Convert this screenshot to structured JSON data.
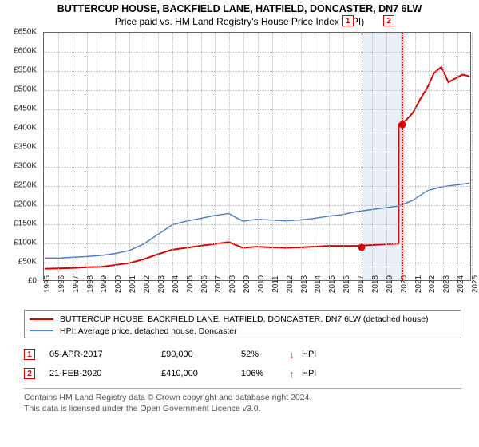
{
  "title": {
    "line1": "BUTTERCUP HOUSE, BACKFIELD LANE, HATFIELD, DONCASTER, DN7 6LW",
    "line2": "Price paid vs. HM Land Registry's House Price Index (HPI)"
  },
  "chart": {
    "type": "line",
    "background_color": "#ffffff",
    "grid_color": "#bbbbbb",
    "axis_color": "#666666",
    "title_fontsize": 12.5,
    "label_fontsize": 10,
    "x": {
      "years": [
        1995,
        1996,
        1997,
        1998,
        1999,
        2000,
        2001,
        2002,
        2003,
        2004,
        2005,
        2006,
        2007,
        2008,
        2009,
        2010,
        2011,
        2012,
        2013,
        2014,
        2015,
        2016,
        2017,
        2018,
        2019,
        2020,
        2021,
        2022,
        2023,
        2024,
        2025
      ],
      "min": 1995,
      "max": 2025
    },
    "y": {
      "ticks": [
        0,
        50,
        100,
        150,
        200,
        250,
        300,
        350,
        400,
        450,
        500,
        550,
        600,
        650
      ],
      "min": 0,
      "max": 650,
      "prefix": "£",
      "suffix": "K"
    },
    "series": [
      {
        "name": "property",
        "label": "BUTTERCUP HOUSE, BACKFIELD LANE, HATFIELD, DONCASTER, DN7 6LW (detached house)",
        "color": "#e10000",
        "line_width": 2,
        "points": [
          [
            1995,
            30
          ],
          [
            1996,
            31
          ],
          [
            1997,
            32
          ],
          [
            1998,
            34
          ],
          [
            1999,
            35
          ],
          [
            2000,
            40
          ],
          [
            2001,
            45
          ],
          [
            2002,
            55
          ],
          [
            2003,
            68
          ],
          [
            2004,
            80
          ],
          [
            2005,
            85
          ],
          [
            2006,
            90
          ],
          [
            2007,
            95
          ],
          [
            2008,
            100
          ],
          [
            2009,
            85
          ],
          [
            2010,
            88
          ],
          [
            2011,
            86
          ],
          [
            2012,
            85
          ],
          [
            2013,
            86
          ],
          [
            2014,
            88
          ],
          [
            2015,
            90
          ],
          [
            2016,
            90
          ],
          [
            2017,
            90
          ],
          [
            2018,
            92
          ],
          [
            2019,
            94
          ],
          [
            2019.99,
            96
          ],
          [
            2020,
            410
          ],
          [
            2020.5,
            420
          ],
          [
            2021,
            440
          ],
          [
            2021.5,
            475
          ],
          [
            2022,
            505
          ],
          [
            2022.5,
            545
          ],
          [
            2023,
            560
          ],
          [
            2023.5,
            520
          ],
          [
            2024,
            530
          ],
          [
            2024.5,
            540
          ],
          [
            2025,
            535
          ]
        ]
      },
      {
        "name": "hpi",
        "label": "HPI: Average price, detached house, Doncaster",
        "color": "#4a7ecb",
        "line_width": 1.5,
        "points": [
          [
            1995,
            58
          ],
          [
            1996,
            58
          ],
          [
            1997,
            60
          ],
          [
            1998,
            62
          ],
          [
            1999,
            65
          ],
          [
            2000,
            70
          ],
          [
            2001,
            78
          ],
          [
            2002,
            95
          ],
          [
            2003,
            120
          ],
          [
            2004,
            145
          ],
          [
            2005,
            155
          ],
          [
            2006,
            162
          ],
          [
            2007,
            170
          ],
          [
            2008,
            175
          ],
          [
            2009,
            155
          ],
          [
            2010,
            160
          ],
          [
            2011,
            158
          ],
          [
            2012,
            156
          ],
          [
            2013,
            158
          ],
          [
            2014,
            162
          ],
          [
            2015,
            168
          ],
          [
            2016,
            172
          ],
          [
            2017,
            180
          ],
          [
            2018,
            185
          ],
          [
            2019,
            190
          ],
          [
            2020,
            195
          ],
          [
            2021,
            210
          ],
          [
            2022,
            235
          ],
          [
            2023,
            245
          ],
          [
            2024,
            250
          ],
          [
            2025,
            255
          ]
        ]
      }
    ],
    "markers": [
      {
        "id": "1",
        "year": 2017.26,
        "value": 90,
        "badge_color": "#e10000",
        "dot_color": "#e10000",
        "line_style": "dotted"
      },
      {
        "id": "2",
        "year": 2020.14,
        "value": 410,
        "badge_color": "#e10000",
        "dot_color": "#e10000",
        "line_style": "dotted"
      }
    ],
    "marker_band": {
      "from_year": 2017.26,
      "to_year": 2020.14,
      "fill": "#dce6f4",
      "opacity": 0.6
    }
  },
  "legend": {
    "border_color": "#888888",
    "items": [
      {
        "color": "#e10000",
        "width": 2,
        "text": "BUTTERCUP HOUSE, BACKFIELD LANE, HATFIELD, DONCASTER, DN7 6LW (detached house)"
      },
      {
        "color": "#4a7ecb",
        "width": 1.5,
        "text": "HPI: Average price, detached house, Doncaster"
      }
    ]
  },
  "events": [
    {
      "badge": "1",
      "badge_color": "#e10000",
      "date": "05-APR-2017",
      "price": "£90,000",
      "pct": "52%",
      "arrow": "↓",
      "arrow_color": "#e10000",
      "suffix": "HPI"
    },
    {
      "badge": "2",
      "badge_color": "#e10000",
      "date": "21-FEB-2020",
      "price": "£410,000",
      "pct": "106%",
      "arrow": "↑",
      "arrow_color": "#1aa01a",
      "suffix": "HPI"
    }
  ],
  "footer": {
    "line1": "Contains HM Land Registry data © Crown copyright and database right 2024.",
    "line2": "This data is licensed under the Open Government Licence v3.0."
  }
}
